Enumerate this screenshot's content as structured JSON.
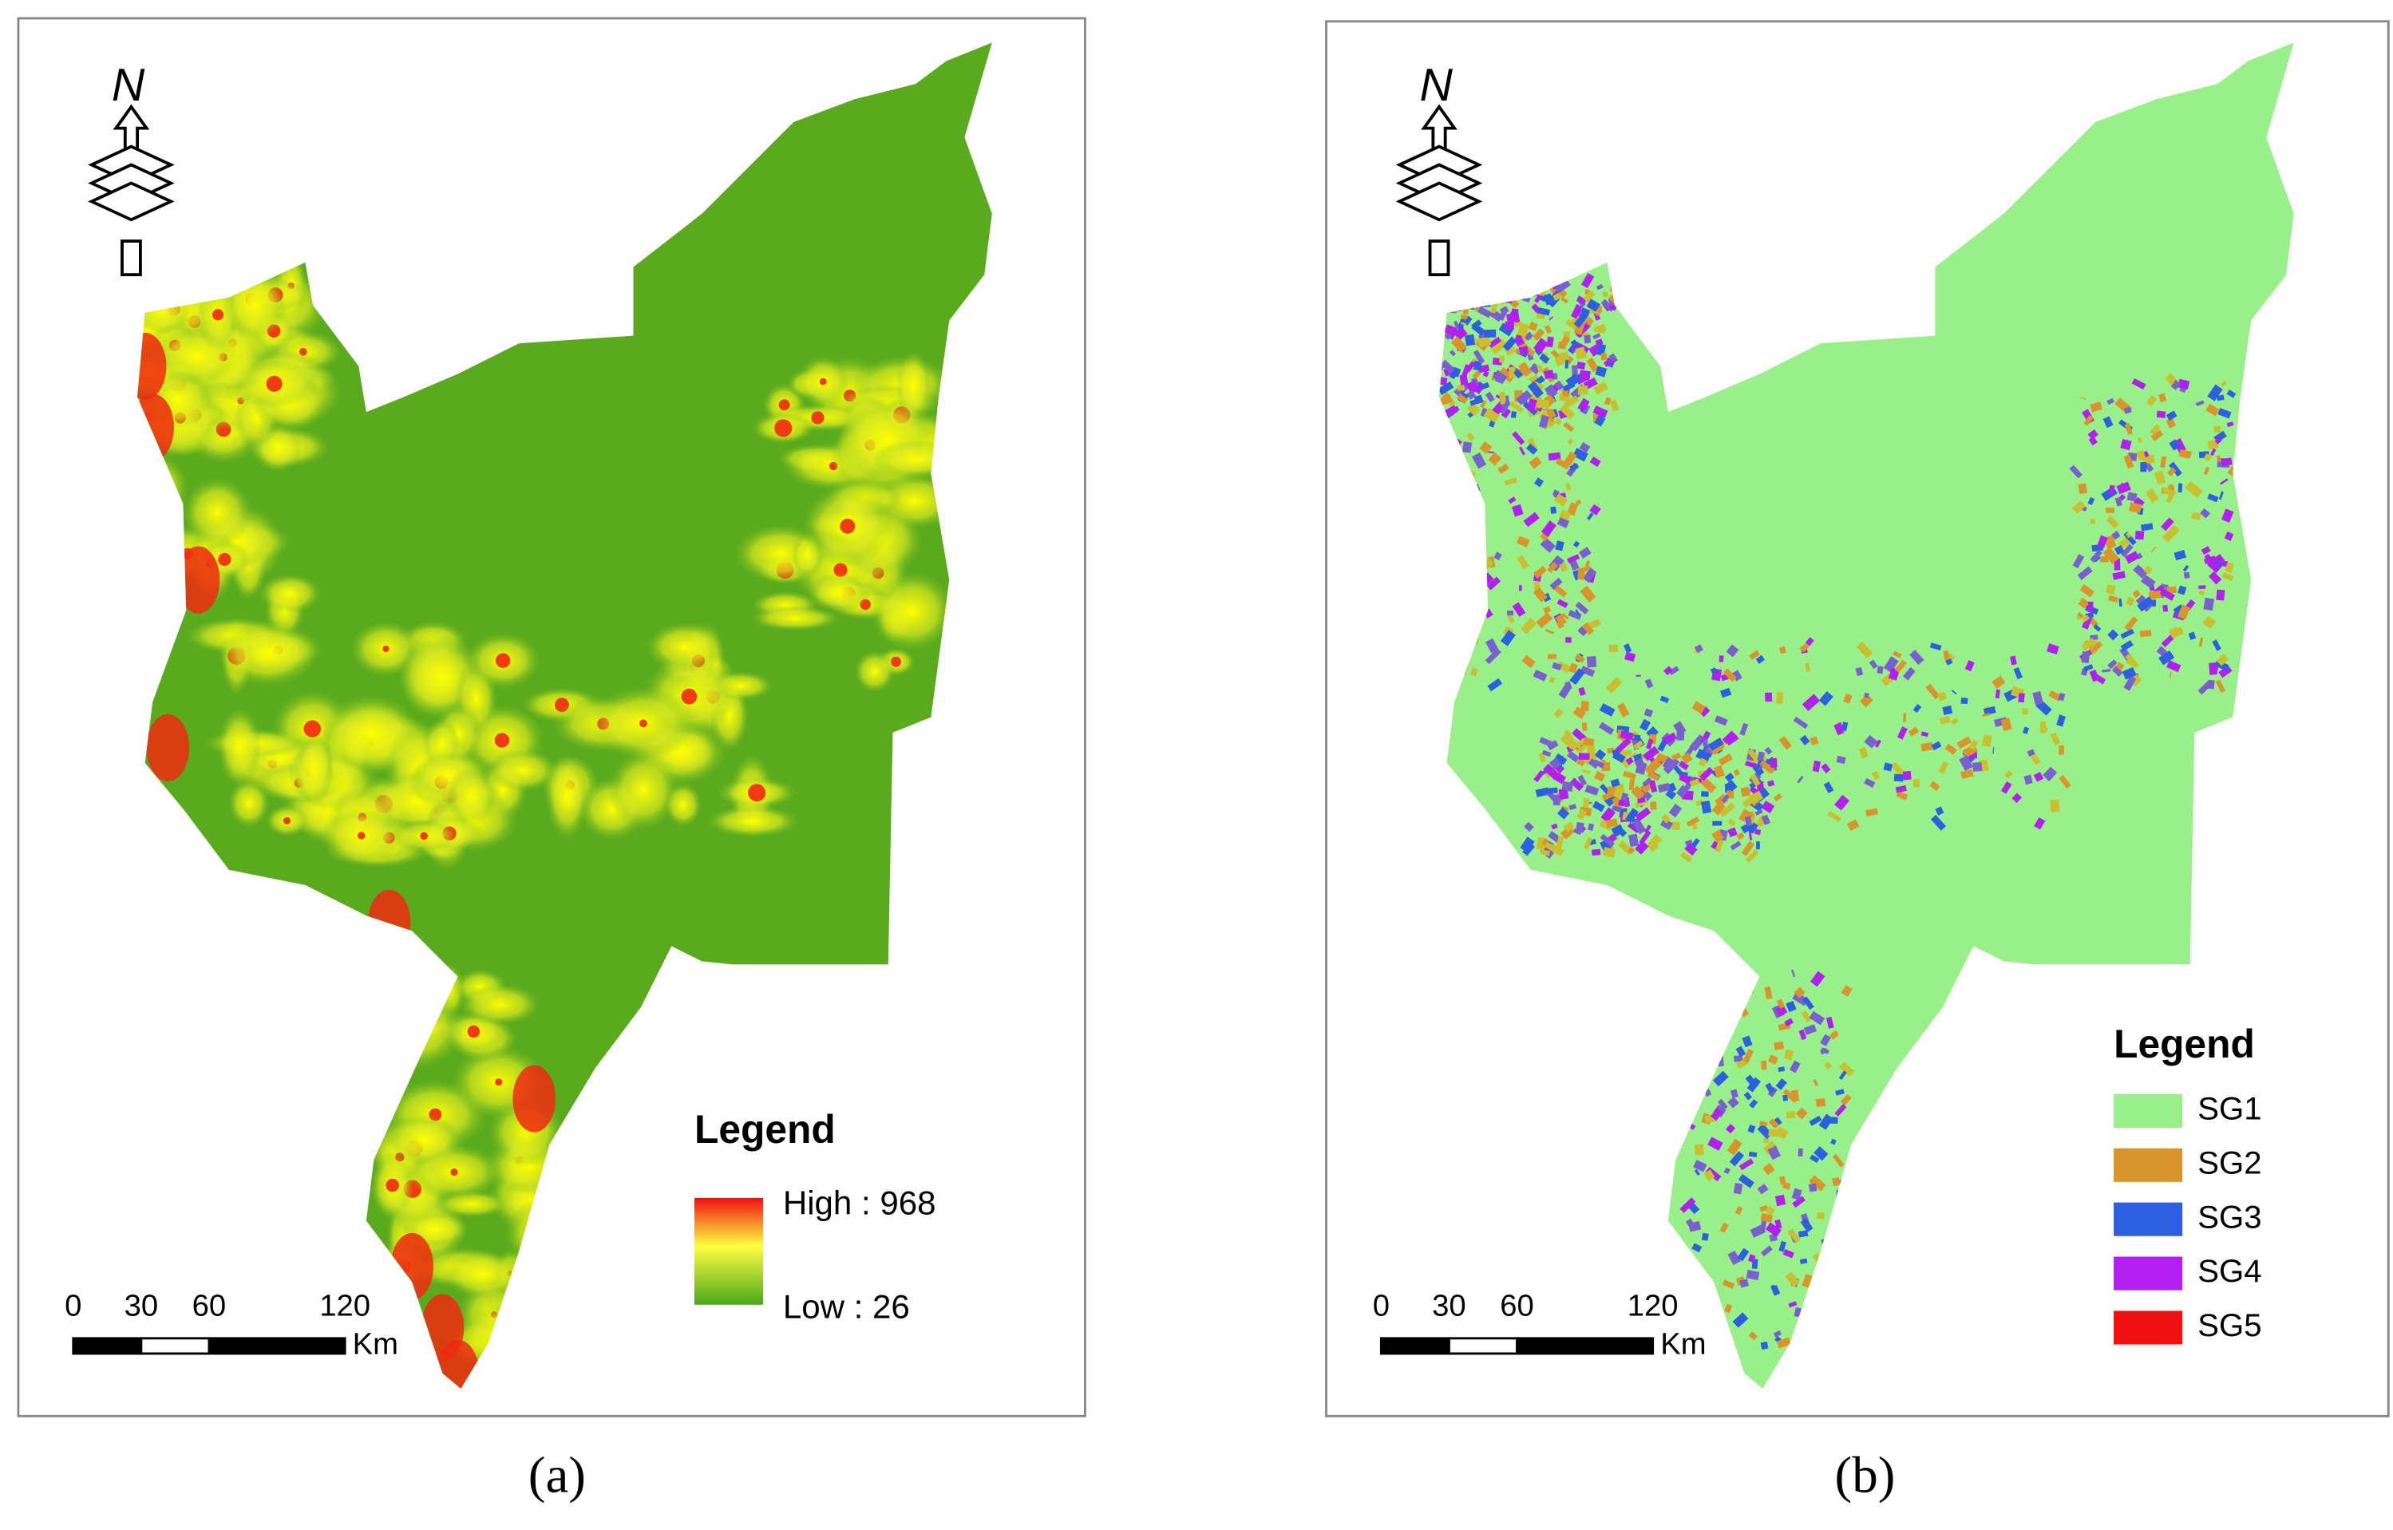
{
  "panels": [
    {
      "caption": "(a)",
      "north": "N",
      "scale_bar": {
        "ticks": [
          0,
          30,
          60,
          120
        ],
        "unit": "Km"
      },
      "legend": {
        "title": "Legend",
        "high": "High : 968",
        "low": "Low : 26"
      }
    },
    {
      "caption": "(b)",
      "north": "N",
      "scale_bar": {
        "ticks": [
          0,
          30,
          60,
          120
        ],
        "unit": "Km"
      },
      "legend": {
        "title": "Legend",
        "items": [
          {
            "label": "SG1",
            "color": "#99f08a"
          },
          {
            "label": "SG2",
            "color": "#d9952b"
          },
          {
            "label": "SG3",
            "color": "#2d5fe0"
          },
          {
            "label": "SG4",
            "color": "#b21ff0"
          },
          {
            "label": "SG5",
            "color": "#f01010"
          }
        ]
      }
    }
  ]
}
